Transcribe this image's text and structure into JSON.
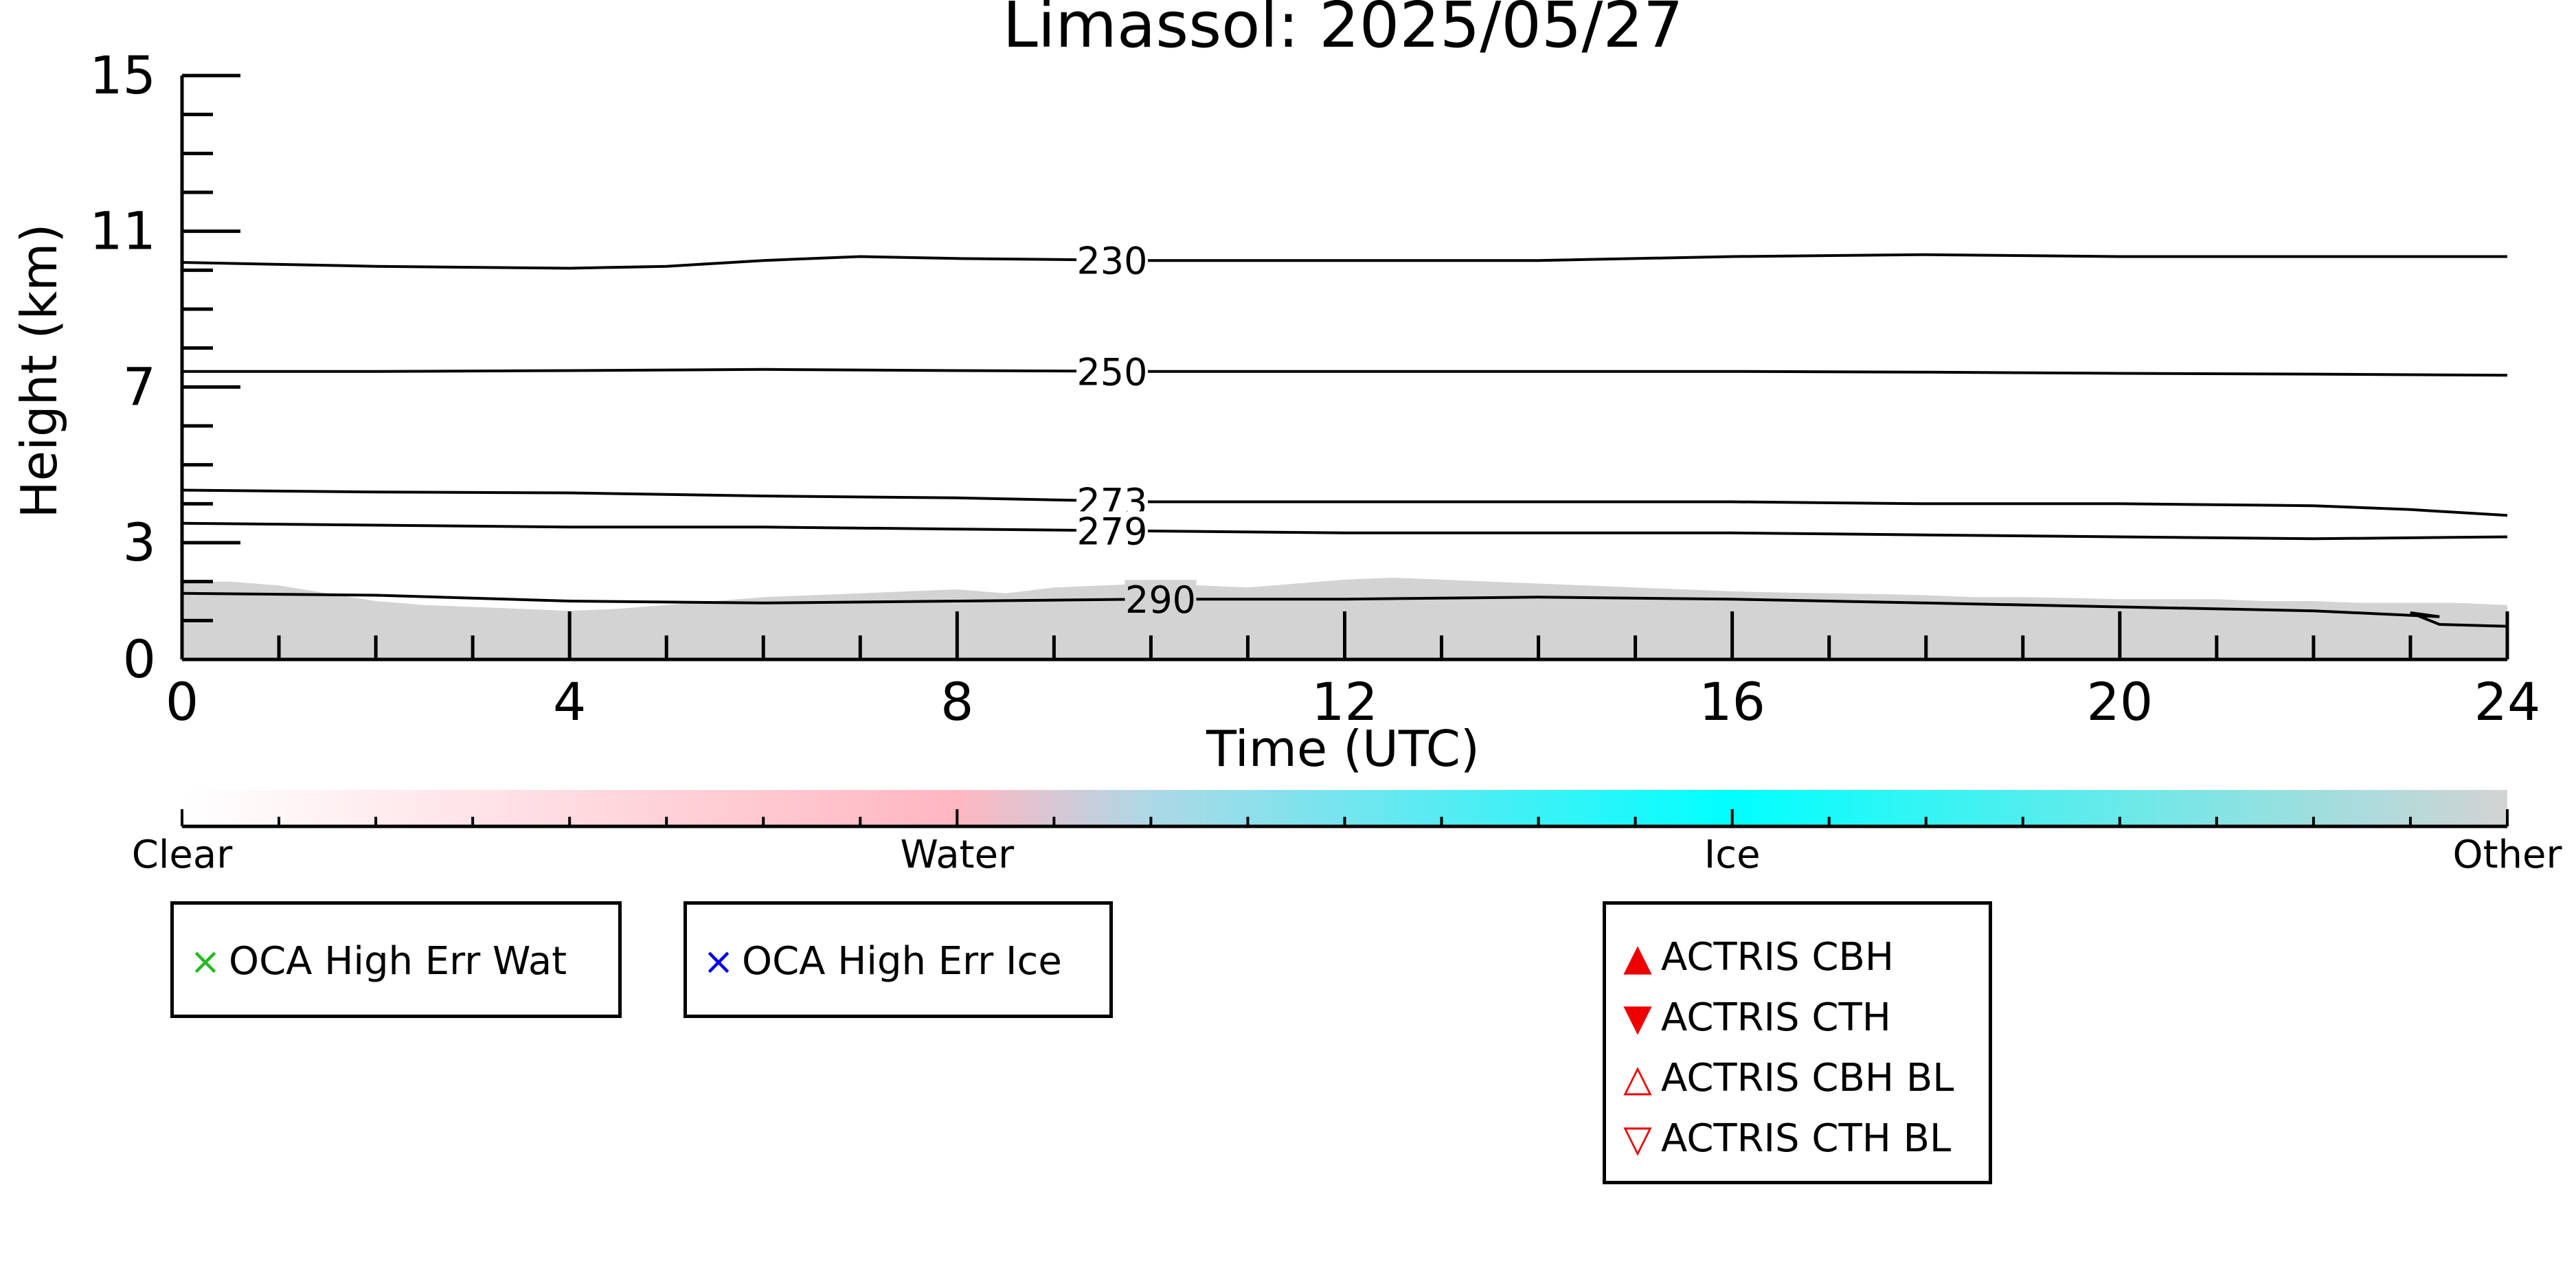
{
  "chart_data": {
    "type": "line",
    "title": "Limassol: 2025/05/27",
    "xlabel": "Time (UTC)",
    "ylabel": "Height (km)",
    "xlim": [
      0,
      24
    ],
    "ylim": [
      0,
      15
    ],
    "x_ticks": [
      0,
      4,
      8,
      12,
      16,
      20,
      24
    ],
    "y_ticks": [
      0,
      3,
      7,
      11,
      15
    ],
    "background_fill": {
      "name": "Other",
      "color": "#d3d3d3",
      "x": [
        0,
        0.5,
        1,
        1.5,
        2,
        2.5,
        3,
        3.5,
        4,
        4.5,
        5,
        5.5,
        6,
        6.5,
        7,
        7.5,
        8,
        8.5,
        9,
        9.5,
        10,
        10.5,
        11,
        11.5,
        12,
        12.5,
        13,
        13.5,
        14,
        14.5,
        15,
        15.5,
        16,
        16.5,
        17,
        17.5,
        18,
        18.5,
        19,
        19.5,
        20,
        20.5,
        21,
        21.5,
        22,
        22.5,
        23,
        23.5,
        24
      ],
      "top": [
        2.0,
        2.0,
        1.9,
        1.7,
        1.5,
        1.4,
        1.35,
        1.3,
        1.25,
        1.3,
        1.4,
        1.5,
        1.6,
        1.65,
        1.7,
        1.75,
        1.8,
        1.7,
        1.85,
        1.9,
        1.95,
        1.9,
        1.85,
        1.95,
        2.05,
        2.1,
        2.05,
        2.0,
        1.95,
        1.9,
        1.85,
        1.8,
        1.75,
        1.72,
        1.7,
        1.68,
        1.65,
        1.6,
        1.6,
        1.58,
        1.55,
        1.55,
        1.55,
        1.5,
        1.5,
        1.45,
        1.45,
        1.45,
        1.4
      ]
    },
    "contours": [
      {
        "level": "230",
        "x": [
          0,
          2,
          4,
          5,
          6,
          7,
          8,
          10,
          12,
          14,
          16,
          18,
          20,
          22,
          24
        ],
        "y": [
          10.2,
          10.1,
          10.05,
          10.1,
          10.25,
          10.35,
          10.3,
          10.25,
          10.25,
          10.25,
          10.35,
          10.4,
          10.35,
          10.35,
          10.35
        ],
        "label_x": 9.6
      },
      {
        "level": "250",
        "x": [
          0,
          2,
          4,
          6,
          8,
          10,
          12,
          14,
          16,
          18,
          20,
          22,
          24
        ],
        "y": [
          7.4,
          7.4,
          7.42,
          7.45,
          7.42,
          7.4,
          7.4,
          7.4,
          7.4,
          7.38,
          7.35,
          7.33,
          7.3
        ],
        "label_x": 9.6
      },
      {
        "level": "273",
        "x": [
          0,
          2,
          4,
          6,
          8,
          10,
          12,
          14,
          16,
          18,
          20,
          22,
          23,
          24
        ],
        "y": [
          4.35,
          4.3,
          4.28,
          4.2,
          4.15,
          4.05,
          4.05,
          4.05,
          4.05,
          4.0,
          4.0,
          3.95,
          3.85,
          3.7
        ],
        "label_x": 9.6
      },
      {
        "level": "279",
        "x": [
          0,
          2,
          4,
          6,
          8,
          10,
          12,
          14,
          16,
          18,
          20,
          22,
          24
        ],
        "y": [
          3.5,
          3.45,
          3.4,
          3.4,
          3.35,
          3.3,
          3.25,
          3.25,
          3.25,
          3.2,
          3.15,
          3.1,
          3.15
        ],
        "label_x": 9.6
      },
      {
        "level": "290",
        "x": [
          0,
          2,
          4,
          6,
          8,
          10,
          12,
          14,
          16,
          18,
          20,
          22,
          23.3,
          23.0,
          23.3,
          24
        ],
        "y": [
          1.7,
          1.65,
          1.5,
          1.45,
          1.5,
          1.55,
          1.55,
          1.6,
          1.55,
          1.45,
          1.35,
          1.25,
          1.1,
          1.2,
          0.9,
          0.85
        ],
        "label_x": 10.1
      }
    ],
    "colorbar": {
      "labels": [
        "Clear",
        "Water",
        "Ice",
        "Other"
      ],
      "positions": [
        0,
        8,
        16,
        24
      ],
      "gradient": [
        {
          "at": 0,
          "color": "#ffffff"
        },
        {
          "at": 8,
          "color": "#ffb6c1"
        },
        {
          "at": 10,
          "color": "#add8e6"
        },
        {
          "at": 16,
          "color": "#00ffff"
        },
        {
          "at": 24,
          "color": "#d3d3d3"
        }
      ]
    }
  },
  "legends": {
    "box1": {
      "symbol": "×",
      "color": "#22bb22",
      "label": "OCA High Err Wat"
    },
    "box2": {
      "symbol": "×",
      "color": "#0000ee",
      "label": "OCA High Err Ice"
    },
    "box3": [
      {
        "symbol": "▲",
        "color": "#ee0000",
        "label": "ACTRIS CBH"
      },
      {
        "symbol": "▼",
        "color": "#ee0000",
        "label": "ACTRIS CTH"
      },
      {
        "symbol": "△",
        "color": "#ee0000",
        "label": "ACTRIS CBH BL"
      },
      {
        "symbol": "▽",
        "color": "#ee0000",
        "label": "ACTRIS CTH BL"
      }
    ]
  }
}
